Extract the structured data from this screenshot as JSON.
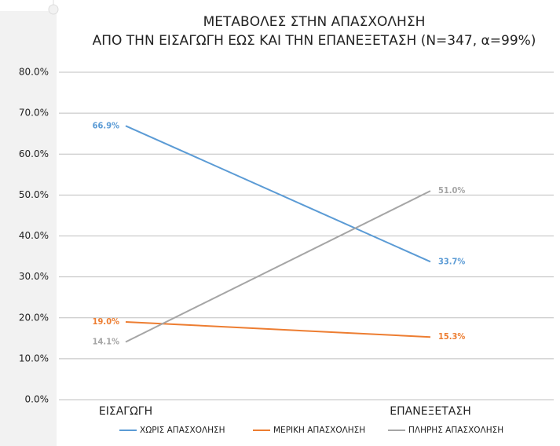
{
  "chart_data": {
    "type": "line",
    "title": "ΜΕΤΑΒΟΛΕΣ ΣΤΗΝ ΑΠΑΣΧΟΛΗΣΗ",
    "subtitle": "ΑΠΟ ΤΗΝ ΕΙΣΑΓΩΓΗ ΕΩΣ ΚΑΙ ΤΗΝ ΕΠΑΝΕΞΕΤΑΣΗ (N=347, α=99%)",
    "categories": [
      "ΕΙΣΑΓΩΓΗ",
      "ΕΠΑΝΕΞΕΤΑΣΗ"
    ],
    "series": [
      {
        "name": "ΧΩΡΙΣ ΑΠΑΣΧΟΛΗΣΗ",
        "color": "#5b9bd5",
        "values": [
          66.9,
          33.7
        ],
        "value_labels": [
          "66.9%",
          "33.7%"
        ]
      },
      {
        "name": "ΜΕΡΙΚΗ ΑΠΑΣΧΟΛΗΣΗ",
        "color": "#ed7d31",
        "values": [
          19.0,
          15.3
        ],
        "value_labels": [
          "19.0%",
          "15.3%"
        ]
      },
      {
        "name": "ΠΛΗΡΗΣ ΑΠΑΣΧΟΛΗΣΗ",
        "color": "#a5a5a5",
        "values": [
          14.1,
          51.0
        ],
        "value_labels": [
          "14.1%",
          "51.0%"
        ]
      }
    ],
    "ylim": [
      0,
      80
    ],
    "yticks": [
      {
        "value": 0,
        "label": "0.0%"
      },
      {
        "value": 10,
        "label": "10.0%"
      },
      {
        "value": 20,
        "label": "20.0%"
      },
      {
        "value": 30,
        "label": "30.0%"
      },
      {
        "value": 40,
        "label": "40.0%"
      },
      {
        "value": 50,
        "label": "50.0%"
      },
      {
        "value": 60,
        "label": "60.0%"
      },
      {
        "value": 70,
        "label": "70.0%"
      },
      {
        "value": 80,
        "label": "80.0%"
      }
    ],
    "grid": true,
    "legend": "bottom"
  }
}
